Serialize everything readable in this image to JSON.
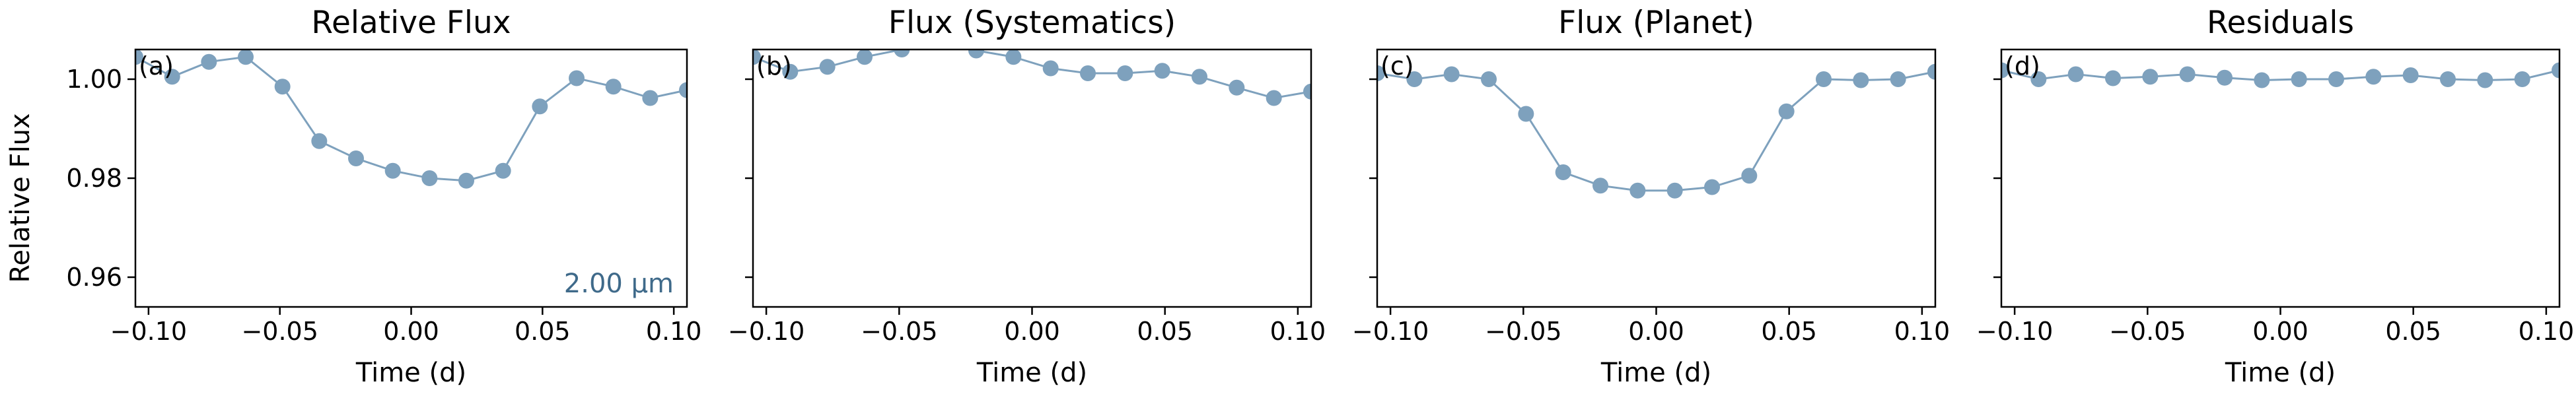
{
  "figure": {
    "ylabel": "Relative Flux",
    "annotation": "2.00 µm",
    "colors": {
      "series": "#7ea1bd",
      "annotation": "#3f6a8a"
    }
  },
  "chart_data": [
    {
      "type": "line",
      "title": "Relative Flux",
      "tag": "(a)",
      "xlabel": "Time (d)",
      "ylabel": "Relative Flux",
      "xlim": [
        -0.105,
        0.105
      ],
      "ylim": [
        0.954,
        1.006
      ],
      "xticks": [
        -0.1,
        -0.05,
        0.0,
        0.05,
        0.1
      ],
      "xtick_labels": [
        "−0.10",
        "−0.05",
        "0.00",
        "0.05",
        "0.10"
      ],
      "yticks": [
        0.96,
        0.98,
        1.0
      ],
      "ytick_labels": [
        "0.96",
        "0.98",
        "1.00"
      ],
      "grid": false,
      "annotation": "2.00 µm",
      "x": [
        -0.105,
        -0.091,
        -0.077,
        -0.063,
        -0.049,
        -0.035,
        -0.021,
        -0.007,
        0.007,
        0.021,
        0.035,
        0.049,
        0.063,
        0.077,
        0.091,
        0.105
      ],
      "y": [
        1.0045,
        1.0005,
        1.0035,
        1.0045,
        0.9985,
        0.9875,
        0.984,
        0.9815,
        0.98,
        0.9795,
        0.9815,
        0.9945,
        1.0002,
        0.9985,
        0.9962,
        0.9978
      ]
    },
    {
      "type": "line",
      "title": "Flux (Systematics)",
      "tag": "(b)",
      "xlabel": "Time (d)",
      "xlim": [
        -0.105,
        0.105
      ],
      "ylim": [
        0.954,
        1.006
      ],
      "xticks": [
        -0.1,
        -0.05,
        0.0,
        0.05,
        0.1
      ],
      "xtick_labels": [
        "−0.10",
        "−0.05",
        "0.00",
        "0.05",
        "0.10"
      ],
      "yticks": [
        0.96,
        0.98,
        1.0
      ],
      "grid": false,
      "x": [
        -0.105,
        -0.091,
        -0.077,
        -0.063,
        -0.049,
        -0.035,
        -0.021,
        -0.007,
        0.007,
        0.021,
        0.035,
        0.049,
        0.063,
        0.077,
        0.091,
        0.105
      ],
      "y": [
        1.0045,
        1.0015,
        1.0025,
        1.0045,
        1.006,
        1.0075,
        1.0058,
        1.0045,
        1.0022,
        1.0012,
        1.0012,
        1.0017,
        1.0005,
        0.9983,
        0.9962,
        0.9975
      ]
    },
    {
      "type": "line",
      "title": "Flux (Planet)",
      "tag": "(c)",
      "xlabel": "Time (d)",
      "xlim": [
        -0.105,
        0.105
      ],
      "ylim": [
        0.954,
        1.006
      ],
      "xticks": [
        -0.1,
        -0.05,
        0.0,
        0.05,
        0.1
      ],
      "xtick_labels": [
        "−0.10",
        "−0.05",
        "0.00",
        "0.05",
        "0.10"
      ],
      "yticks": [
        0.96,
        0.98,
        1.0
      ],
      "grid": false,
      "x": [
        -0.105,
        -0.091,
        -0.077,
        -0.063,
        -0.049,
        -0.035,
        -0.021,
        -0.007,
        0.007,
        0.021,
        0.035,
        0.049,
        0.063,
        0.077,
        0.091,
        0.105
      ],
      "y": [
        1.0012,
        1.0,
        1.001,
        1.0,
        0.993,
        0.9812,
        0.9785,
        0.9775,
        0.9775,
        0.9782,
        0.9805,
        0.9935,
        1.0,
        0.9998,
        1.0,
        1.0015
      ]
    },
    {
      "type": "line",
      "title": "Residuals",
      "tag": "(d)",
      "xlabel": "Time (d)",
      "xlim": [
        -0.105,
        0.105
      ],
      "ylim": [
        0.954,
        1.006
      ],
      "xticks": [
        -0.1,
        -0.05,
        0.0,
        0.05,
        0.1
      ],
      "xtick_labels": [
        "−0.10",
        "−0.05",
        "0.00",
        "0.05",
        "0.10"
      ],
      "yticks": [
        0.96,
        0.98,
        1.0
      ],
      "grid": false,
      "x": [
        -0.105,
        -0.091,
        -0.077,
        -0.063,
        -0.049,
        -0.035,
        -0.021,
        -0.007,
        0.007,
        0.021,
        0.035,
        0.049,
        0.063,
        0.077,
        0.091,
        0.105
      ],
      "y": [
        1.0018,
        1.0,
        1.001,
        1.0002,
        1.0005,
        1.001,
        1.0003,
        0.9998,
        1.0,
        1.0,
        1.0005,
        1.0008,
        1.0,
        0.9998,
        1.0,
        1.0018
      ]
    }
  ]
}
